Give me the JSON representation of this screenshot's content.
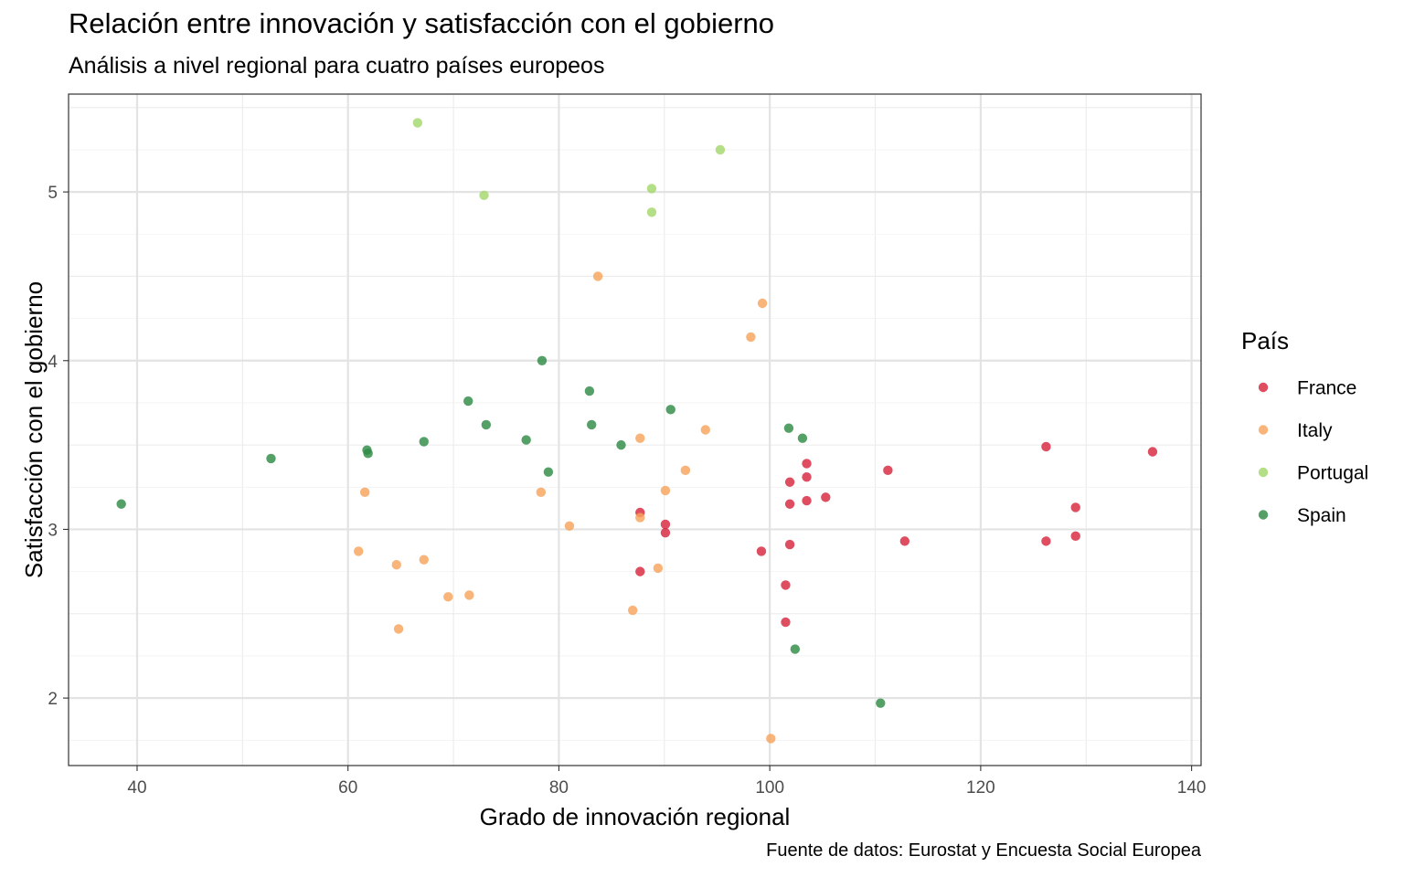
{
  "title": "Relación entre innovación y satisfacción con el gobierno",
  "subtitle": "Análisis a nivel regional para cuatro países europeos",
  "caption": "Fuente de datos: Eurostat y Encuesta Social Europea",
  "chart_data": {
    "type": "scatter",
    "xlabel": "Grado de innovación regional",
    "ylabel": "Satisfacción con el gobierno",
    "xlim": [
      33.5,
      140.9
    ],
    "ylim": [
      1.6,
      5.58
    ],
    "xticks": [
      40,
      60,
      80,
      100,
      120,
      140
    ],
    "yticks": [
      2,
      3,
      4,
      5
    ],
    "grid": true,
    "legend": {
      "title": "País",
      "position": "right"
    },
    "series": [
      {
        "name": "France",
        "color": "#d7263d",
        "points": [
          [
            87.7,
            3.1
          ],
          [
            87.7,
            2.75
          ],
          [
            90.1,
            3.03
          ],
          [
            90.1,
            2.98
          ],
          [
            99.2,
            2.87
          ],
          [
            101.5,
            2.67
          ],
          [
            101.5,
            2.45
          ],
          [
            101.9,
            3.28
          ],
          [
            101.9,
            3.15
          ],
          [
            101.9,
            2.91
          ],
          [
            103.5,
            3.39
          ],
          [
            103.5,
            3.31
          ],
          [
            103.5,
            3.17
          ],
          [
            105.3,
            3.19
          ],
          [
            111.2,
            3.35
          ],
          [
            112.8,
            2.93
          ],
          [
            126.2,
            3.49
          ],
          [
            126.2,
            2.93
          ],
          [
            129.0,
            3.13
          ],
          [
            129.0,
            2.96
          ],
          [
            136.3,
            3.46
          ]
        ]
      },
      {
        "name": "Italy",
        "color": "#f7a35c",
        "points": [
          [
            61.0,
            2.87
          ],
          [
            61.6,
            3.22
          ],
          [
            64.6,
            2.79
          ],
          [
            64.8,
            2.41
          ],
          [
            67.2,
            2.82
          ],
          [
            69.5,
            2.6
          ],
          [
            71.5,
            2.61
          ],
          [
            78.3,
            3.22
          ],
          [
            81.0,
            3.02
          ],
          [
            83.7,
            4.5
          ],
          [
            87.0,
            2.52
          ],
          [
            87.7,
            3.54
          ],
          [
            87.7,
            3.07
          ],
          [
            89.4,
            2.77
          ],
          [
            90.1,
            3.23
          ],
          [
            92.0,
            3.35
          ],
          [
            93.9,
            3.59
          ],
          [
            98.2,
            4.14
          ],
          [
            99.3,
            4.34
          ],
          [
            100.1,
            1.76
          ]
        ]
      },
      {
        "name": "Portugal",
        "color": "#a5d86b",
        "points": [
          [
            66.6,
            5.41
          ],
          [
            72.9,
            4.98
          ],
          [
            88.8,
            5.02
          ],
          [
            88.8,
            4.88
          ],
          [
            95.3,
            5.25
          ]
        ]
      },
      {
        "name": "Spain",
        "color": "#2e8b46",
        "points": [
          [
            38.5,
            3.15
          ],
          [
            52.7,
            3.42
          ],
          [
            61.8,
            3.47
          ],
          [
            61.9,
            3.45
          ],
          [
            67.2,
            3.52
          ],
          [
            71.4,
            3.76
          ],
          [
            73.1,
            3.62
          ],
          [
            76.9,
            3.53
          ],
          [
            78.4,
            4.0
          ],
          [
            79.0,
            3.34
          ],
          [
            82.9,
            3.82
          ],
          [
            83.1,
            3.62
          ],
          [
            85.9,
            3.5
          ],
          [
            90.6,
            3.71
          ],
          [
            101.8,
            3.6
          ],
          [
            103.1,
            3.54
          ],
          [
            102.4,
            2.29
          ],
          [
            110.5,
            1.97
          ]
        ]
      }
    ]
  }
}
